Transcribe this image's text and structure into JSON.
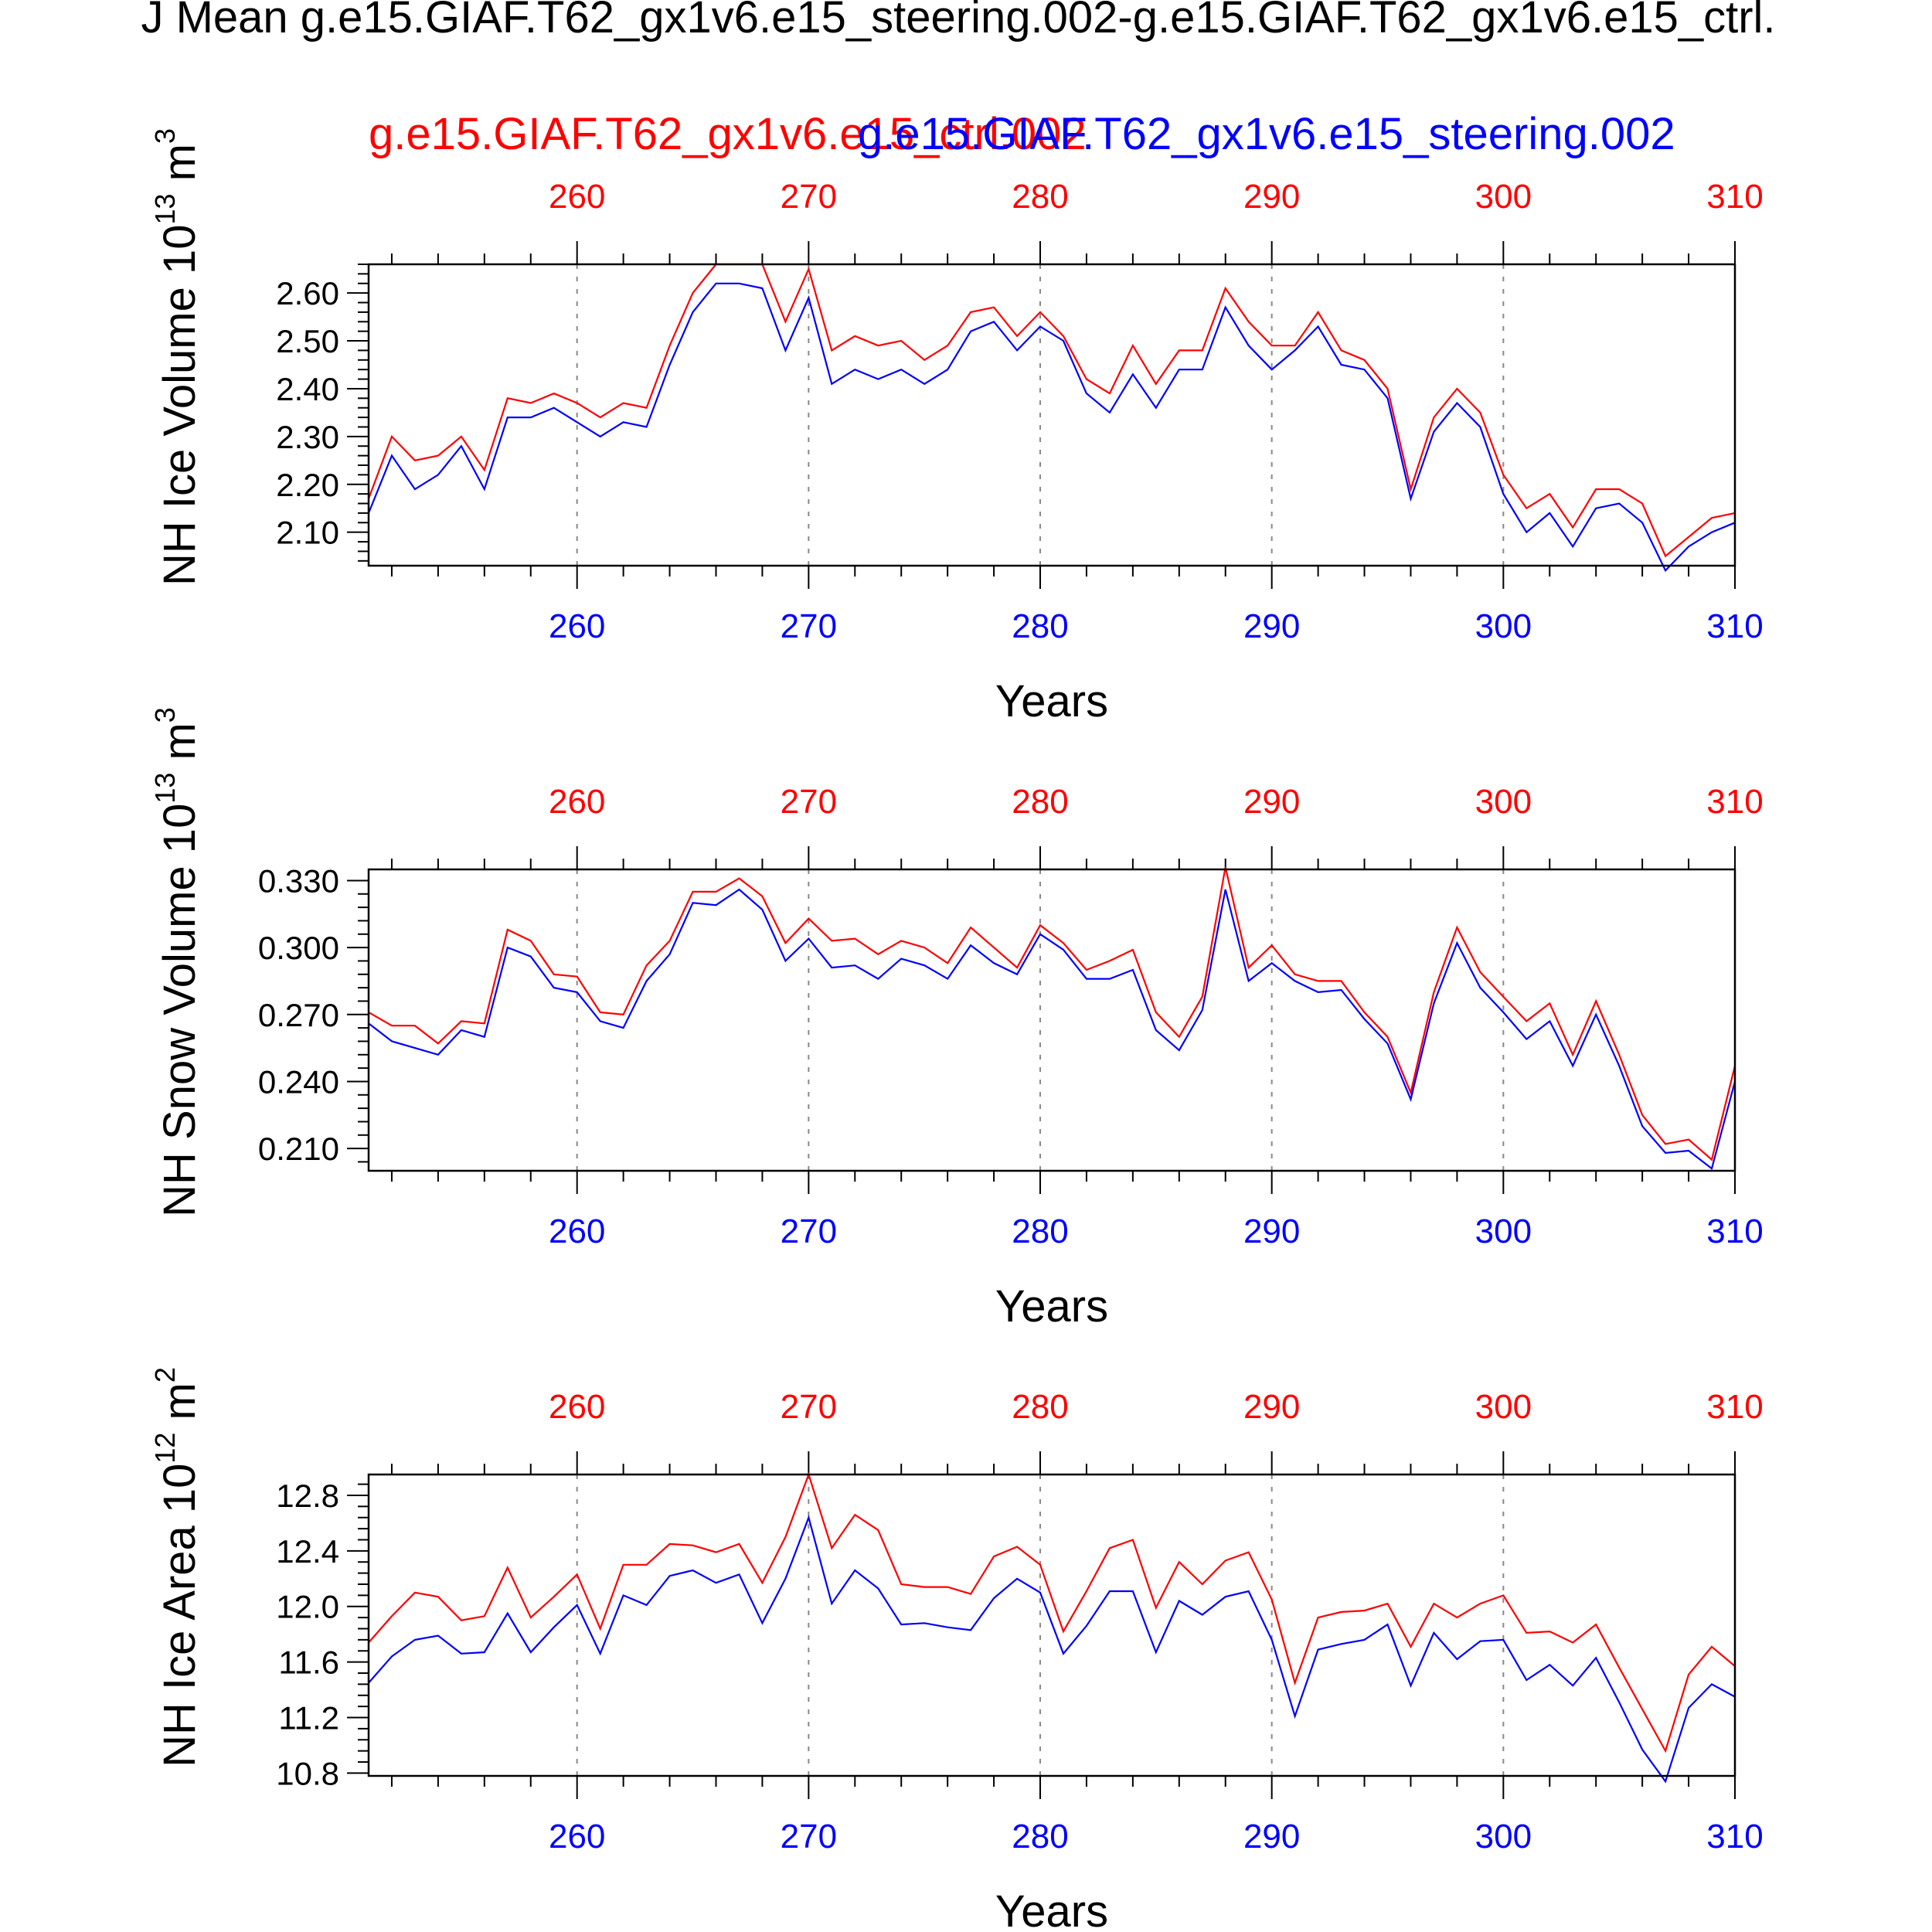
{
  "page_title": "J Mean g.e15.GIAF.T62_gx1v6.e15_steering.002-g.e15.GIAF.T62_gx1v6.e15_ctrl.",
  "legend": {
    "series_ctrl": "g.e15.GIAF.T62_gx1v6.e15_ctrl.002",
    "series_steering": "g.e15.GIAF.T62_gx1v6.e15_steering.002"
  },
  "colors": {
    "ctrl": "#ff0000",
    "steering": "#0000ff",
    "axis": "#000000",
    "grid": "#888888"
  },
  "chart_data": [
    {
      "type": "line",
      "ylabel_main": "NH Ice Volume 10",
      "ylabel_exp": "13",
      "ylabel_unit": " m",
      "ylabel_unit_exp": "3",
      "xlabel": "Years",
      "xlim": [
        251,
        310
      ],
      "ylim": [
        2.03,
        2.66
      ],
      "yticks": [
        2.1,
        2.2,
        2.3,
        2.4,
        2.5,
        2.6
      ],
      "ytick_labels": [
        "2.10",
        "2.20",
        "2.30",
        "2.40",
        "2.50",
        "2.60"
      ],
      "xticks": [
        260,
        270,
        280,
        290,
        300,
        310
      ],
      "xtick_labels": [
        "260",
        "270",
        "280",
        "290",
        "300",
        "310"
      ],
      "x": [
        251,
        252,
        253,
        254,
        255,
        256,
        257,
        258,
        259,
        260,
        261,
        262,
        263,
        264,
        265,
        266,
        267,
        268,
        269,
        270,
        271,
        272,
        273,
        274,
        275,
        276,
        277,
        278,
        279,
        280,
        281,
        282,
        283,
        284,
        285,
        286,
        287,
        288,
        289,
        290,
        291,
        292,
        293,
        294,
        295,
        296,
        297,
        298,
        299,
        300,
        301,
        302,
        303,
        304,
        305,
        306,
        307,
        308,
        309,
        310
      ],
      "series": [
        {
          "values": [
            2.17,
            2.3,
            2.25,
            2.26,
            2.3,
            2.23,
            2.38,
            2.37,
            2.39,
            2.37,
            2.34,
            2.37,
            2.36,
            2.49,
            2.6,
            2.66,
            2.66,
            2.66,
            2.54,
            2.65,
            2.48,
            2.51,
            2.49,
            2.5,
            2.46,
            2.49,
            2.56,
            2.57,
            2.51,
            2.56,
            2.51,
            2.42,
            2.39,
            2.49,
            2.41,
            2.48,
            2.48,
            2.61,
            2.54,
            2.49,
            2.49,
            2.56,
            2.48,
            2.46,
            2.4,
            2.19,
            2.34,
            2.4,
            2.35,
            2.22,
            2.15,
            2.18,
            2.11,
            2.19,
            2.19,
            2.16,
            2.05,
            2.09,
            2.13,
            2.14
          ]
        },
        {
          "values": [
            2.14,
            2.26,
            2.19,
            2.22,
            2.28,
            2.19,
            2.34,
            2.34,
            2.36,
            2.33,
            2.3,
            2.33,
            2.32,
            2.45,
            2.56,
            2.62,
            2.62,
            2.61,
            2.48,
            2.59,
            2.41,
            2.44,
            2.42,
            2.44,
            2.41,
            2.44,
            2.52,
            2.54,
            2.48,
            2.53,
            2.5,
            2.39,
            2.35,
            2.43,
            2.36,
            2.44,
            2.44,
            2.57,
            2.49,
            2.44,
            2.48,
            2.53,
            2.45,
            2.44,
            2.38,
            2.17,
            2.31,
            2.37,
            2.32,
            2.18,
            2.1,
            2.14,
            2.07,
            2.15,
            2.16,
            2.12,
            2.02,
            2.07,
            2.1,
            2.12
          ]
        }
      ]
    },
    {
      "type": "line",
      "ylabel_main": "NH Snow Volume 10",
      "ylabel_exp": "13",
      "ylabel_unit": " m",
      "ylabel_unit_exp": "3",
      "xlabel": "Years",
      "xlim": [
        251,
        310
      ],
      "ylim": [
        0.2,
        0.335
      ],
      "yticks": [
        0.21,
        0.24,
        0.27,
        0.3,
        0.33
      ],
      "ytick_labels": [
        "0.210",
        "0.240",
        "0.270",
        "0.300",
        "0.330"
      ],
      "xticks": [
        260,
        270,
        280,
        290,
        300,
        310
      ],
      "xtick_labels": [
        "260",
        "270",
        "280",
        "290",
        "300",
        "310"
      ],
      "x": [
        251,
        252,
        253,
        254,
        255,
        256,
        257,
        258,
        259,
        260,
        261,
        262,
        263,
        264,
        265,
        266,
        267,
        268,
        269,
        270,
        271,
        272,
        273,
        274,
        275,
        276,
        277,
        278,
        279,
        280,
        281,
        282,
        283,
        284,
        285,
        286,
        287,
        288,
        289,
        290,
        291,
        292,
        293,
        294,
        295,
        296,
        297,
        298,
        299,
        300,
        301,
        302,
        303,
        304,
        305,
        306,
        307,
        308,
        309,
        310
      ],
      "series": [
        {
          "values": [
            0.271,
            0.265,
            0.265,
            0.257,
            0.267,
            0.266,
            0.308,
            0.303,
            0.288,
            0.287,
            0.271,
            0.27,
            0.292,
            0.303,
            0.325,
            0.325,
            0.331,
            0.323,
            0.302,
            0.313,
            0.303,
            0.304,
            0.297,
            0.303,
            0.3,
            0.293,
            0.309,
            0.3,
            0.291,
            0.31,
            0.302,
            0.29,
            0.294,
            0.299,
            0.271,
            0.26,
            0.278,
            0.336,
            0.291,
            0.301,
            0.288,
            0.285,
            0.285,
            0.271,
            0.26,
            0.235,
            0.28,
            0.309,
            0.289,
            0.278,
            0.267,
            0.275,
            0.252,
            0.276,
            0.252,
            0.225,
            0.212,
            0.214,
            0.205,
            0.247
          ]
        },
        {
          "values": [
            0.266,
            0.258,
            0.255,
            0.252,
            0.263,
            0.26,
            0.3,
            0.296,
            0.282,
            0.28,
            0.267,
            0.264,
            0.285,
            0.297,
            0.32,
            0.319,
            0.326,
            0.317,
            0.294,
            0.304,
            0.291,
            0.292,
            0.286,
            0.295,
            0.292,
            0.286,
            0.301,
            0.293,
            0.288,
            0.306,
            0.299,
            0.286,
            0.286,
            0.29,
            0.263,
            0.254,
            0.272,
            0.326,
            0.285,
            0.293,
            0.285,
            0.28,
            0.281,
            0.268,
            0.257,
            0.232,
            0.275,
            0.302,
            0.282,
            0.271,
            0.259,
            0.267,
            0.247,
            0.27,
            0.247,
            0.22,
            0.208,
            0.209,
            0.201,
            0.24
          ]
        }
      ]
    },
    {
      "type": "line",
      "ylabel_main": "NH Ice Area 10",
      "ylabel_exp": "12",
      "ylabel_unit": " m",
      "ylabel_unit_exp": "2",
      "xlabel": "Years",
      "xlim": [
        251,
        310
      ],
      "ylim": [
        10.78,
        12.95
      ],
      "yticks": [
        10.8,
        11.2,
        11.6,
        12.0,
        12.4,
        12.8
      ],
      "ytick_labels": [
        "10.8",
        "11.2",
        "11.6",
        "12.0",
        "12.4",
        "12.8"
      ],
      "xticks": [
        260,
        270,
        280,
        290,
        300,
        310
      ],
      "xtick_labels": [
        "260",
        "270",
        "280",
        "290",
        "300",
        "310"
      ],
      "x": [
        251,
        252,
        253,
        254,
        255,
        256,
        257,
        258,
        259,
        260,
        261,
        262,
        263,
        264,
        265,
        266,
        267,
        268,
        269,
        270,
        271,
        272,
        273,
        274,
        275,
        276,
        277,
        278,
        279,
        280,
        281,
        282,
        283,
        284,
        285,
        286,
        287,
        288,
        289,
        290,
        291,
        292,
        293,
        294,
        295,
        296,
        297,
        298,
        299,
        300,
        301,
        302,
        303,
        304,
        305,
        306,
        307,
        308,
        309,
        310
      ],
      "series": [
        {
          "values": [
            11.74,
            11.93,
            12.1,
            12.07,
            11.9,
            11.93,
            12.28,
            11.92,
            12.07,
            12.23,
            11.84,
            12.3,
            12.3,
            12.45,
            12.44,
            12.39,
            12.45,
            12.17,
            12.5,
            12.95,
            12.42,
            12.66,
            12.55,
            12.16,
            12.14,
            12.14,
            12.09,
            12.36,
            12.43,
            12.3,
            11.82,
            12.11,
            12.42,
            12.48,
            11.99,
            12.32,
            12.16,
            12.33,
            12.39,
            12.05,
            11.45,
            11.92,
            11.96,
            11.97,
            12.02,
            11.71,
            12.02,
            11.92,
            12.02,
            12.08,
            11.81,
            11.82,
            11.74,
            11.87,
            11.56,
            11.26,
            10.96,
            11.51,
            11.71,
            11.57
          ]
        },
        {
          "values": [
            11.45,
            11.64,
            11.76,
            11.79,
            11.66,
            11.67,
            11.95,
            11.67,
            11.85,
            12.01,
            11.66,
            12.08,
            12.01,
            12.22,
            12.26,
            12.17,
            12.23,
            11.88,
            12.2,
            12.64,
            12.02,
            12.26,
            12.13,
            11.87,
            11.88,
            11.85,
            11.83,
            12.06,
            12.2,
            12.1,
            11.66,
            11.86,
            12.11,
            12.11,
            11.67,
            12.04,
            11.94,
            12.07,
            12.11,
            11.76,
            11.21,
            11.69,
            11.73,
            11.76,
            11.87,
            11.43,
            11.81,
            11.62,
            11.75,
            11.76,
            11.47,
            11.58,
            11.43,
            11.63,
            11.31,
            10.97,
            10.74,
            11.27,
            11.44,
            11.35
          ]
        }
      ]
    }
  ]
}
